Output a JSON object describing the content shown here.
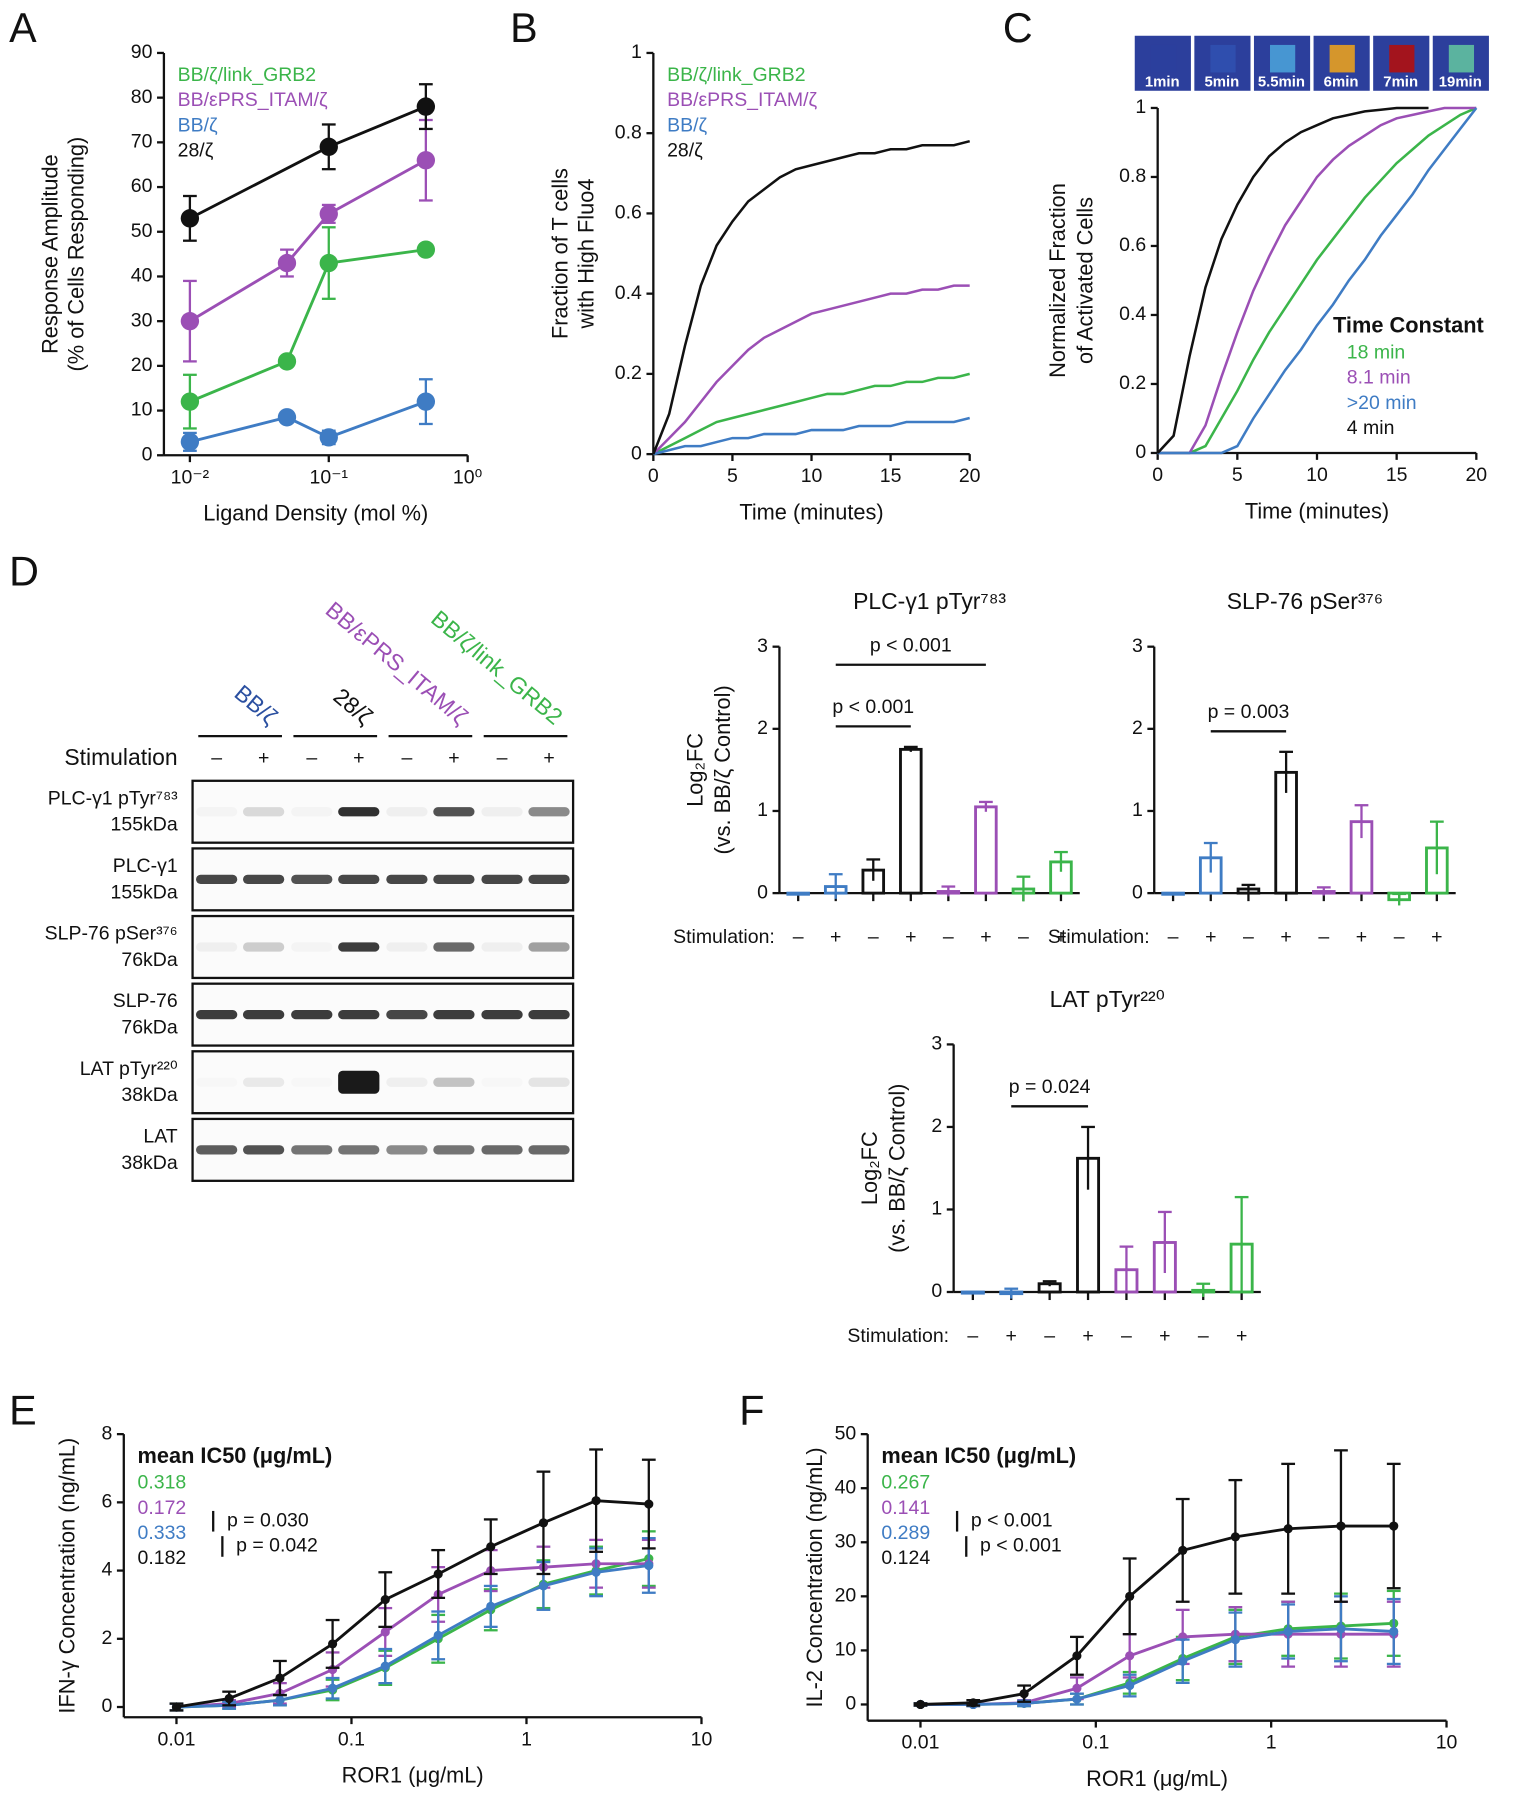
{
  "chart_data": [
    {
      "panel": "A",
      "type": "line",
      "markers": true,
      "xlog": true,
      "xlabel": "Ligand Density (mol %)",
      "ylabel": [
        "Response Amplitude",
        "(% of Cells Responding)"
      ],
      "xlim": [
        0.0065,
        1
      ],
      "xticks": [
        {
          "value": 0.01,
          "label": "10⁻²"
        },
        {
          "value": 0.1,
          "label": "10⁻¹"
        },
        {
          "value": 1,
          "label": "10⁰"
        }
      ],
      "ylim": [
        0,
        90
      ],
      "yticks": [
        0,
        10,
        20,
        30,
        40,
        50,
        60,
        70,
        80,
        90
      ],
      "legend": "top-left",
      "series": [
        {
          "name": "BB/ζ/link_GRB2",
          "color": "#3bb54a",
          "x": [
            0.01,
            0.05,
            0.1,
            0.5
          ],
          "values": [
            12,
            21,
            43,
            46
          ],
          "errors": [
            6,
            1,
            8,
            1
          ]
        },
        {
          "name": "BB/εPRS_ITAM/ζ",
          "color": "#9b4fb5",
          "x": [
            0.01,
            0.05,
            0.1,
            0.5
          ],
          "values": [
            30,
            43,
            54,
            66
          ],
          "errors": [
            9,
            3,
            2,
            9
          ]
        },
        {
          "name": "BB/ζ",
          "color": "#3f7cc4",
          "x": [
            0.01,
            0.05,
            0.1,
            0.5
          ],
          "values": [
            3,
            8.5,
            4,
            12
          ],
          "errors": [
            2,
            1,
            1.5,
            5
          ]
        },
        {
          "name": "28/ζ",
          "color": "#111111",
          "x": [
            0.01,
            0.1,
            0.5
          ],
          "values": [
            53,
            69,
            78
          ],
          "errors": [
            5,
            5,
            5
          ]
        }
      ]
    },
    {
      "panel": "B",
      "type": "line",
      "xlabel": "Time (minutes)",
      "ylabel": [
        "Fraction of T cells",
        "with High Fluo4"
      ],
      "x": [
        0,
        1,
        2,
        3,
        4,
        5,
        6,
        7,
        8,
        9,
        10,
        11,
        12,
        13,
        14,
        15,
        16,
        17,
        18,
        19,
        20
      ],
      "xlim": [
        0,
        20
      ],
      "xticks": [
        0,
        5,
        10,
        15,
        20
      ],
      "ylim": [
        0,
        1
      ],
      "yticks": [
        0,
        0.2,
        0.4,
        0.6,
        0.8,
        1
      ],
      "legend": "top-left",
      "series": [
        {
          "name": "BB/ζ/link_GRB2",
          "color": "#3bb54a",
          "values": [
            0,
            0.02,
            0.04,
            0.06,
            0.08,
            0.09,
            0.1,
            0.11,
            0.12,
            0.13,
            0.14,
            0.15,
            0.15,
            0.16,
            0.17,
            0.17,
            0.18,
            0.18,
            0.19,
            0.19,
            0.2
          ]
        },
        {
          "name": "BB/εPRS_ITAM/ζ",
          "color": "#9b4fb5",
          "values": [
            0,
            0.04,
            0.08,
            0.13,
            0.18,
            0.22,
            0.26,
            0.29,
            0.31,
            0.33,
            0.35,
            0.36,
            0.37,
            0.38,
            0.39,
            0.4,
            0.4,
            0.41,
            0.41,
            0.42,
            0.42
          ]
        },
        {
          "name": "BB/ζ",
          "color": "#3f7cc4",
          "values": [
            0,
            0.01,
            0.02,
            0.02,
            0.03,
            0.04,
            0.04,
            0.05,
            0.05,
            0.05,
            0.06,
            0.06,
            0.06,
            0.07,
            0.07,
            0.07,
            0.08,
            0.08,
            0.08,
            0.08,
            0.09
          ]
        },
        {
          "name": "28/ζ",
          "color": "#111111",
          "values": [
            0,
            0.1,
            0.27,
            0.42,
            0.52,
            0.58,
            0.63,
            0.66,
            0.69,
            0.71,
            0.72,
            0.73,
            0.74,
            0.75,
            0.75,
            0.76,
            0.76,
            0.77,
            0.77,
            0.77,
            0.78
          ]
        }
      ]
    },
    {
      "panel": "C",
      "type": "line",
      "xlabel": "Time (minutes)",
      "ylabel": [
        "Normalized Fraction",
        "of Activated Cells"
      ],
      "thumbnails": [
        "1min",
        "5min",
        "5.5min",
        "6min",
        "7min",
        "19min"
      ],
      "xlim": [
        0,
        20
      ],
      "xticks": [
        0,
        5,
        10,
        15,
        20
      ],
      "ylim": [
        0,
        1
      ],
      "yticks": [
        0,
        0.2,
        0.4,
        0.6,
        0.8,
        1
      ],
      "legend": "lower-right",
      "legend_title": "Time Constant",
      "series": [
        {
          "name": "18 min",
          "color": "#3bb54a",
          "x": [
            0,
            1,
            2,
            3,
            4,
            5,
            6,
            7,
            8,
            9,
            10,
            11,
            12,
            13,
            14,
            15,
            16,
            17,
            18,
            19,
            20
          ],
          "values": [
            0,
            0,
            0,
            0.02,
            0.1,
            0.18,
            0.27,
            0.35,
            0.42,
            0.49,
            0.56,
            0.62,
            0.68,
            0.74,
            0.79,
            0.84,
            0.88,
            0.92,
            0.95,
            0.98,
            1
          ]
        },
        {
          "name": "8.1 min",
          "color": "#9b4fb5",
          "x": [
            0,
            1,
            2,
            3,
            4,
            5,
            6,
            7,
            8,
            9,
            10,
            11,
            12,
            13,
            14,
            15,
            16,
            17,
            18,
            19,
            20
          ],
          "values": [
            0,
            0,
            0,
            0.08,
            0.22,
            0.35,
            0.47,
            0.57,
            0.66,
            0.73,
            0.8,
            0.85,
            0.89,
            0.92,
            0.95,
            0.97,
            0.98,
            0.99,
            1,
            1,
            1
          ]
        },
        {
          "name": ">20 min",
          "color": "#3f7cc4",
          "x": [
            0,
            1,
            2,
            3,
            4,
            5,
            6,
            7,
            8,
            9,
            10,
            11,
            12,
            13,
            14,
            15,
            16,
            17,
            18,
            19,
            20
          ],
          "values": [
            0,
            0,
            0,
            0,
            0,
            0.02,
            0.1,
            0.17,
            0.24,
            0.3,
            0.37,
            0.43,
            0.5,
            0.56,
            0.63,
            0.69,
            0.75,
            0.82,
            0.88,
            0.94,
            1
          ]
        },
        {
          "name": "4 min",
          "color": "#111111",
          "x": [
            0,
            1,
            2,
            3,
            4,
            5,
            6,
            7,
            8,
            9,
            10,
            11,
            12,
            13,
            14,
            15,
            16,
            17
          ],
          "values": [
            0,
            0.05,
            0.28,
            0.48,
            0.62,
            0.72,
            0.8,
            0.86,
            0.9,
            0.93,
            0.95,
            0.97,
            0.98,
            0.99,
            0.995,
            1,
            1,
            1
          ]
        }
      ]
    },
    {
      "type": "bar",
      "title": "PLC-γ1 pTyr⁷⁸³",
      "xlabel": "Stimulation:",
      "ylabel": [
        "Log₂FC",
        "(vs. BB/ζ Control)"
      ],
      "categories": [
        "–",
        "+",
        "–",
        "+",
        "–",
        "+",
        "–",
        "+"
      ],
      "values": [
        0,
        0.08,
        0.28,
        1.75,
        0.02,
        1.05,
        0.05,
        0.38
      ],
      "errors": [
        0,
        0.15,
        0.13,
        0.03,
        0.06,
        0.06,
        0.15,
        0.12
      ],
      "colors": [
        "#3f7cc4",
        "#3f7cc4",
        "#111111",
        "#111111",
        "#9b4fb5",
        "#9b4fb5",
        "#3bb54a",
        "#3bb54a"
      ],
      "ylim": [
        0,
        3
      ],
      "yticks": [
        0,
        1,
        2,
        3
      ],
      "annotations": [
        {
          "text": "p < 0.001",
          "between": [
            1,
            3
          ]
        },
        {
          "text": "p < 0.001",
          "between": [
            1,
            5
          ]
        }
      ]
    },
    {
      "type": "bar",
      "title": "SLP-76 pSer³⁷⁶",
      "xlabel": "Stimulation:",
      "categories": [
        "–",
        "+",
        "–",
        "+",
        "–",
        "+",
        "–",
        "+"
      ],
      "values": [
        0,
        0.43,
        0.05,
        1.47,
        0.02,
        0.87,
        -0.08,
        0.55
      ],
      "errors": [
        0,
        0.18,
        0.05,
        0.25,
        0.05,
        0.2,
        0.07,
        0.32
      ],
      "colors": [
        "#3f7cc4",
        "#3f7cc4",
        "#111111",
        "#111111",
        "#9b4fb5",
        "#9b4fb5",
        "#3bb54a",
        "#3bb54a"
      ],
      "ylim": [
        0,
        3
      ],
      "yticks": [
        0,
        1,
        2,
        3
      ],
      "annotations": [
        {
          "text": "p = 0.003",
          "between": [
            1,
            3
          ]
        }
      ]
    },
    {
      "type": "bar",
      "title": "LAT pTyr²²⁰",
      "xlabel": "Stimulation:",
      "ylabel": [
        "Log₂FC",
        "(vs. BB/ζ Control)"
      ],
      "categories": [
        "–",
        "+",
        "–",
        "+",
        "–",
        "+",
        "–",
        "+"
      ],
      "values": [
        0,
        -0.02,
        0.1,
        1.62,
        0.27,
        0.6,
        0.02,
        0.58
      ],
      "errors": [
        0,
        0.06,
        0.03,
        0.38,
        0.28,
        0.37,
        0.08,
        0.57
      ],
      "colors": [
        "#3f7cc4",
        "#3f7cc4",
        "#111111",
        "#111111",
        "#9b4fb5",
        "#9b4fb5",
        "#3bb54a",
        "#3bb54a"
      ],
      "ylim": [
        0,
        3
      ],
      "yticks": [
        0,
        1,
        2,
        3
      ],
      "annotations": [
        {
          "text": "p = 0.024",
          "between": [
            1,
            3
          ]
        }
      ]
    },
    {
      "panel": "E",
      "type": "line",
      "markers": true,
      "xlog": true,
      "xlabel": "ROR1 (μg/mL)",
      "ylabel": [
        "IFN-γ Concentration (ng/mL)"
      ],
      "x": [
        0.01,
        0.02,
        0.039,
        0.078,
        0.156,
        0.313,
        0.625,
        1.25,
        2.5,
        5
      ],
      "xlim": [
        0.005,
        10
      ],
      "xticks": [
        0.01,
        0.1,
        1,
        10
      ],
      "ylim": [
        -0.3,
        8
      ],
      "yticks": [
        0,
        2,
        4,
        6,
        8
      ],
      "legend": "top-left",
      "legend_title": "mean IC50 (μg/mL)",
      "annotations": [
        {
          "text": "p = 0.030",
          "between": [
            1,
            2
          ]
        },
        {
          "text": "p = 0.042",
          "between": [
            2,
            3
          ]
        }
      ],
      "series": [
        {
          "name": "0.318",
          "color": "#3bb54a",
          "values": [
            0,
            0.05,
            0.2,
            0.5,
            1.15,
            2,
            2.85,
            3.6,
            4,
            4.35
          ],
          "errors": [
            0.1,
            0.1,
            0.15,
            0.3,
            0.5,
            0.7,
            0.6,
            0.7,
            0.7,
            0.8
          ]
        },
        {
          "name": "0.172",
          "color": "#9b4fb5",
          "values": [
            0,
            0.1,
            0.4,
            1.1,
            2.2,
            3.3,
            4,
            4.1,
            4.2,
            4.2
          ],
          "errors": [
            0.1,
            0.1,
            0.3,
            0.5,
            0.7,
            0.8,
            0.6,
            0.6,
            0.7,
            0.7
          ]
        },
        {
          "name": "0.333",
          "color": "#3f7cc4",
          "values": [
            0,
            0.05,
            0.2,
            0.55,
            1.2,
            2.1,
            2.95,
            3.55,
            3.95,
            4.15
          ],
          "errors": [
            0.1,
            0.1,
            0.15,
            0.3,
            0.5,
            0.7,
            0.6,
            0.7,
            0.7,
            0.8
          ]
        },
        {
          "name": "0.182",
          "color": "#111111",
          "values": [
            0,
            0.25,
            0.85,
            1.85,
            3.15,
            3.9,
            4.7,
            5.4,
            6.05,
            5.95
          ],
          "errors": [
            0.1,
            0.2,
            0.5,
            0.7,
            0.8,
            0.7,
            0.8,
            1.5,
            1.5,
            1.3
          ]
        }
      ]
    },
    {
      "panel": "F",
      "type": "line",
      "markers": true,
      "xlog": true,
      "xlabel": "ROR1 (μg/mL)",
      "ylabel": [
        "IL-2 Concentration (ng/mL)"
      ],
      "x": [
        0.01,
        0.02,
        0.039,
        0.078,
        0.156,
        0.313,
        0.625,
        1.25,
        2.5,
        5
      ],
      "xlim": [
        0.005,
        10
      ],
      "xticks": [
        0.01,
        0.1,
        1,
        10
      ],
      "ylim": [
        -3,
        50
      ],
      "yticks": [
        0,
        10,
        20,
        30,
        40,
        50
      ],
      "legend": "top-left",
      "legend_title": "mean IC50 (μg/mL)",
      "annotations": [
        {
          "text": "p < 0.001",
          "between": [
            1,
            2
          ]
        },
        {
          "text": "p < 0.001",
          "between": [
            2,
            3
          ]
        }
      ],
      "series": [
        {
          "name": "0.267",
          "color": "#3bb54a",
          "values": [
            0,
            0,
            0.2,
            1,
            4,
            8.5,
            12.5,
            14,
            14.5,
            15
          ],
          "errors": [
            0.2,
            0.3,
            0.5,
            1,
            2,
            4,
            5,
            5,
            6,
            6
          ]
        },
        {
          "name": "0.141",
          "color": "#9b4fb5",
          "values": [
            0,
            0,
            0.3,
            3,
            9,
            12.5,
            13,
            13,
            13,
            13
          ],
          "errors": [
            0.2,
            0.3,
            0.5,
            2,
            4,
            5,
            5,
            6,
            6,
            6
          ]
        },
        {
          "name": "0.289",
          "color": "#3f7cc4",
          "values": [
            0,
            0,
            0.2,
            1,
            3.5,
            8,
            12,
            13.5,
            14,
            13.5
          ],
          "errors": [
            0.2,
            0.3,
            0.5,
            1,
            2,
            4,
            5,
            5,
            6,
            6
          ]
        },
        {
          "name": "0.124",
          "color": "#111111",
          "values": [
            0,
            0.3,
            2,
            9,
            20,
            28.5,
            31,
            32.5,
            33,
            33
          ],
          "errors": [
            0.2,
            0.5,
            1.5,
            3.5,
            7,
            9.5,
            10.5,
            12,
            14,
            11.5
          ]
        }
      ]
    }
  ],
  "blot": {
    "panel": "D",
    "lanes": [
      "BB/ζ",
      "28/ζ",
      "BB/εPRS_ITAM/ζ",
      "BB/ζ/link_GRB2"
    ],
    "lane_colors": [
      "#2a4fa0",
      "#111111",
      "#9b4fb5",
      "#3bb54a"
    ],
    "stimulation_label": "Stimulation",
    "stimulation": [
      "–",
      "+",
      "–",
      "+",
      "–",
      "+",
      "–",
      "+"
    ],
    "rows": [
      {
        "label": "PLC-γ1 pTyr⁷⁸³",
        "size": "155kDa"
      },
      {
        "label": "PLC-γ1",
        "size": "155kDa"
      },
      {
        "label": "SLP-76 pSer³⁷⁶",
        "size": "76kDa"
      },
      {
        "label": "SLP-76",
        "size": "76kDa"
      },
      {
        "label": "LAT pTyr²²⁰",
        "size": "38kDa"
      },
      {
        "label": "LAT",
        "size": "38kDa"
      }
    ]
  }
}
